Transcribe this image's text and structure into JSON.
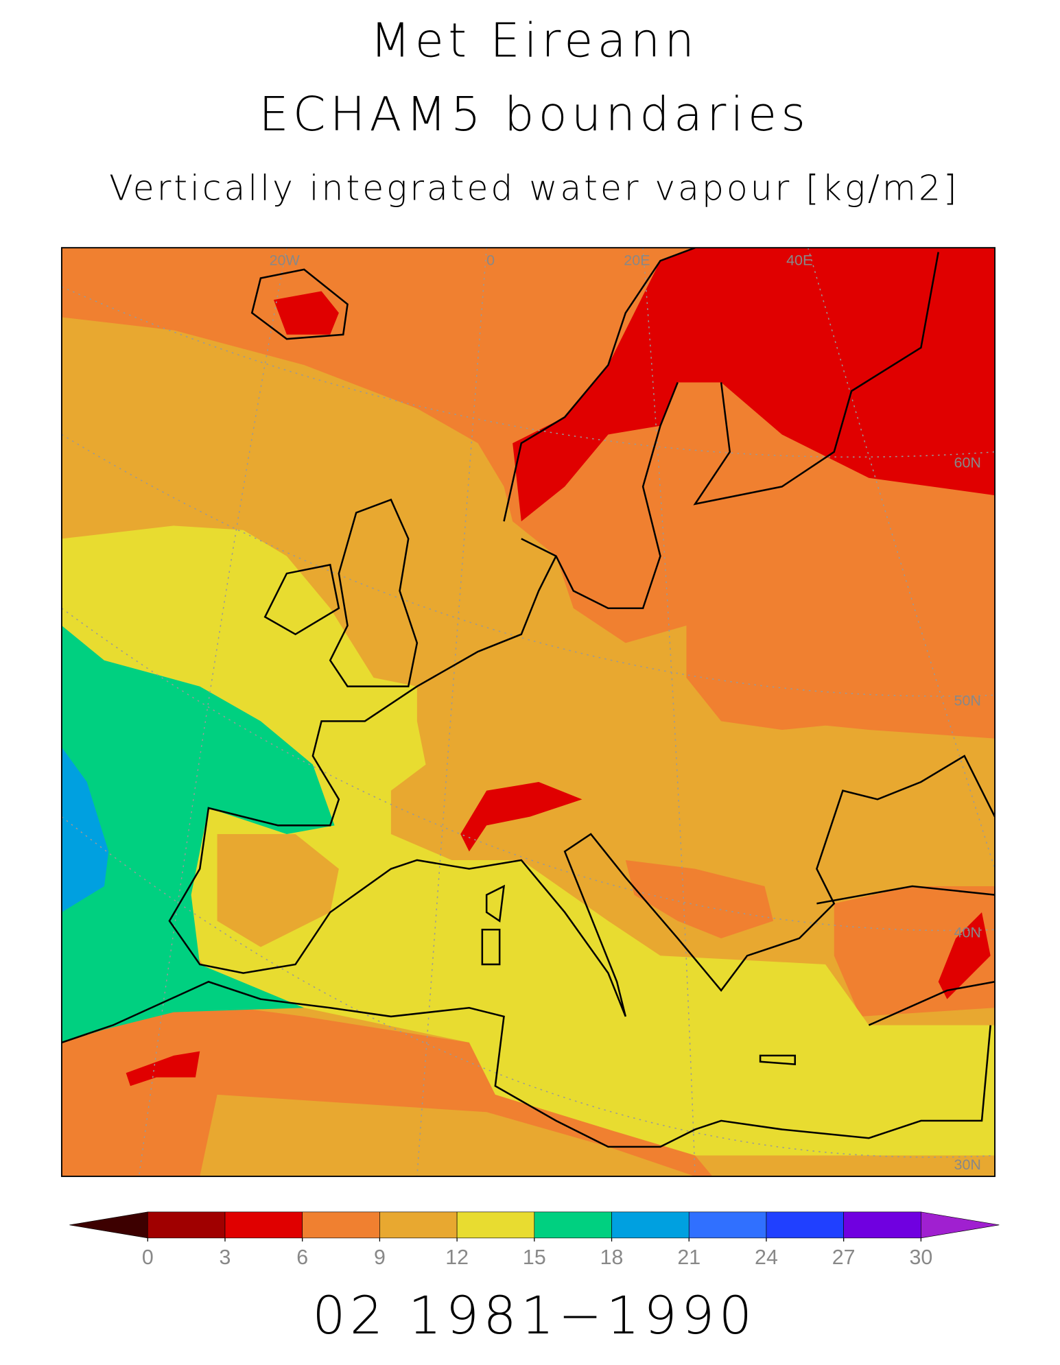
{
  "header": {
    "title": "Met Eireann",
    "subtitle": "ECHAM5 boundaries",
    "variable": "Vertically integrated water vapour [kg/m2]"
  },
  "map": {
    "graticule_labels": [
      "20W",
      "0",
      "20E",
      "40E",
      "60N",
      "50N",
      "40N",
      "30N"
    ]
  },
  "colorbar": {
    "ticks": [
      0,
      3,
      6,
      9,
      12,
      15,
      18,
      21,
      24,
      27,
      30
    ],
    "colors": [
      "#3d0000",
      "#a00000",
      "#e00000",
      "#f08030",
      "#e8a830",
      "#e8dc30",
      "#00d080",
      "#00a0e0",
      "#3070ff",
      "#2040ff",
      "#7000e0",
      "#a020d0"
    ]
  },
  "footer": {
    "period": "02 1981−1990"
  }
}
